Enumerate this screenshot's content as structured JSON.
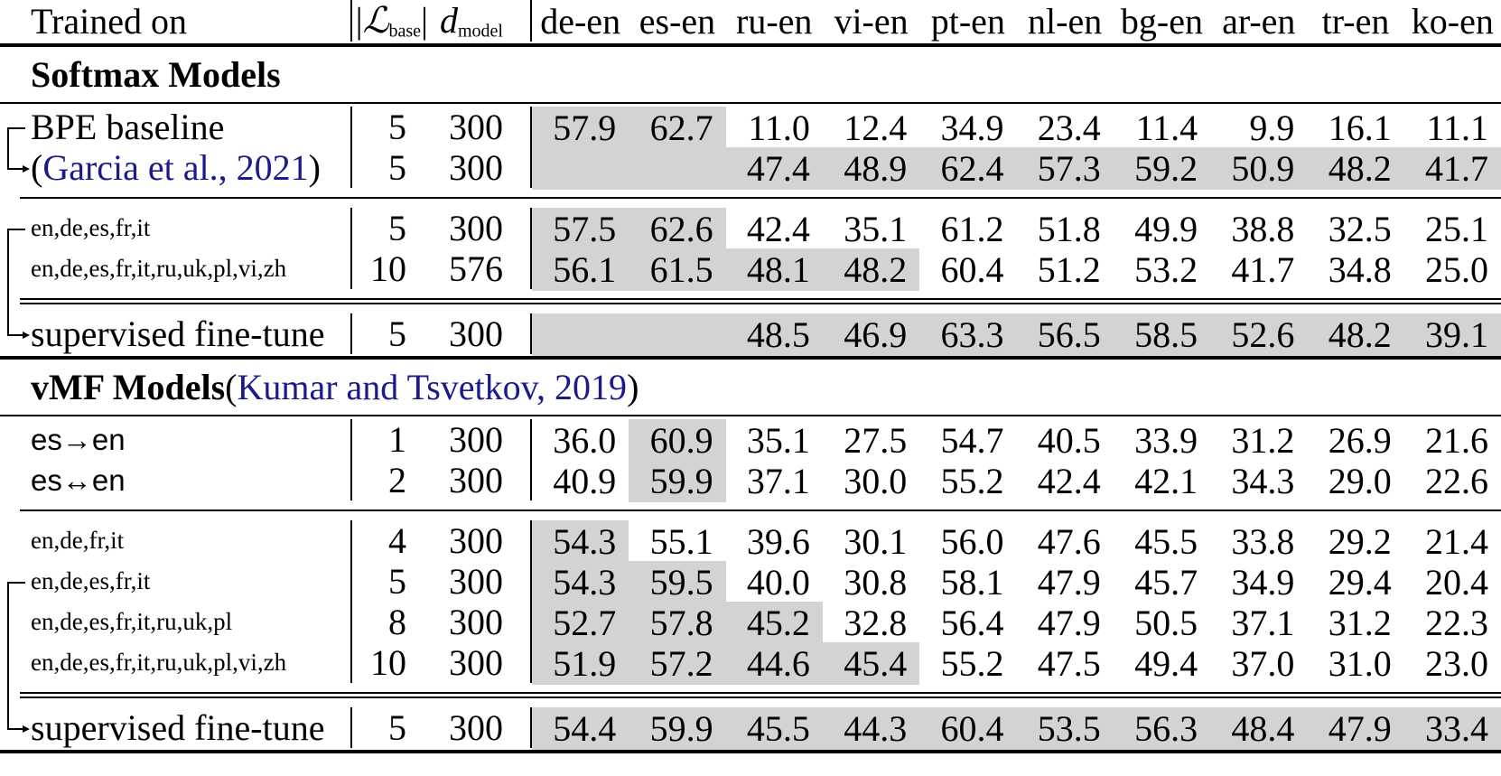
{
  "colors": {
    "shade": "#d3d3d3",
    "link": "#1a1a8c",
    "text": "#000000"
  },
  "header": {
    "trained_on": "Trained on",
    "l_base": {
      "pre": "|",
      "letter": "ℒ",
      "sub": "base",
      "post": "|"
    },
    "d_model": {
      "letter": "d",
      "sub": "model"
    },
    "languages": [
      "de-en",
      "es-en",
      "ru-en",
      "vi-en",
      "pt-en",
      "nl-en",
      "bg-en",
      "ar-en",
      "tr-en",
      "ko-en"
    ]
  },
  "rows": [
    {
      "type": "header"
    },
    {
      "type": "rule",
      "style": "thick"
    },
    {
      "type": "title",
      "parts": [
        {
          "text": "Softmax Models",
          "bold": true,
          "link": false
        }
      ]
    },
    {
      "type": "rule",
      "style": "title"
    },
    {
      "type": "data",
      "id": "softmax-bpe-baseline",
      "size": "normal",
      "label": [
        {
          "text": "BPE baseline",
          "link": false
        }
      ],
      "l_base": "5",
      "d_model": "300",
      "values": [
        "57.9",
        "62.7",
        "11.0",
        "12.4",
        "34.9",
        "23.4",
        "11.4",
        "9.9",
        "16.1",
        "11.1"
      ],
      "shaded": [
        true,
        true,
        false,
        false,
        false,
        false,
        false,
        false,
        false,
        false
      ]
    },
    {
      "type": "data",
      "id": "softmax-garcia",
      "size": "normal",
      "label": [
        {
          "text": "(",
          "link": false
        },
        {
          "text": "Garcia et al., 2021",
          "link": true
        },
        {
          "text": ")",
          "link": false
        }
      ],
      "l_base": "5",
      "d_model": "300",
      "values": [
        "",
        "",
        "47.4",
        "48.9",
        "62.4",
        "57.3",
        "59.2",
        "50.9",
        "48.2",
        "41.7"
      ],
      "shaded": [
        true,
        true,
        true,
        true,
        true,
        true,
        true,
        true,
        true,
        true
      ]
    },
    {
      "type": "rule",
      "style": "mid"
    },
    {
      "type": "data",
      "id": "softmax-5lang",
      "size": "small",
      "label": [
        {
          "text": "en,de,es,fr,it",
          "link": false
        }
      ],
      "l_base": "5",
      "d_model": "300",
      "values": [
        "57.5",
        "62.6",
        "42.4",
        "35.1",
        "61.2",
        "51.8",
        "49.9",
        "38.8",
        "32.5",
        "25.1"
      ],
      "shaded": [
        true,
        true,
        false,
        false,
        false,
        false,
        false,
        false,
        false,
        false
      ]
    },
    {
      "type": "data",
      "id": "softmax-10lang",
      "size": "small",
      "label": [
        {
          "text": "en,de,es,fr,it,ru,uk,pl,vi,zh",
          "link": false
        }
      ],
      "l_base": "10",
      "d_model": "576",
      "values": [
        "56.1",
        "61.5",
        "48.1",
        "48.2",
        "60.4",
        "51.2",
        "53.2",
        "41.7",
        "34.8",
        "25.0"
      ],
      "shaded": [
        true,
        true,
        true,
        true,
        false,
        false,
        false,
        false,
        false,
        false
      ]
    },
    {
      "type": "rule",
      "style": "double"
    },
    {
      "type": "data",
      "id": "softmax-sft",
      "size": "normal",
      "label": [
        {
          "text": "supervised fine-tune",
          "link": false
        }
      ],
      "l_base": "5",
      "d_model": "300",
      "values": [
        "",
        "",
        "48.5",
        "46.9",
        "63.3",
        "56.5",
        "58.5",
        "52.6",
        "48.2",
        "39.1"
      ],
      "shaded": [
        true,
        true,
        true,
        true,
        true,
        true,
        true,
        true,
        true,
        true
      ]
    },
    {
      "type": "rule",
      "style": "thick"
    },
    {
      "type": "title",
      "parts": [
        {
          "text": "vMF Models ",
          "bold": true,
          "link": false
        },
        {
          "text": "(",
          "bold": false,
          "link": false
        },
        {
          "text": "Kumar and Tsvetkov, 2019",
          "bold": false,
          "link": true
        },
        {
          "text": ")",
          "bold": false,
          "link": false
        }
      ]
    },
    {
      "type": "rule",
      "style": "title"
    },
    {
      "type": "data",
      "id": "vmf-es-to-en",
      "size": "sans",
      "label": [
        {
          "text": "es→en",
          "link": false
        }
      ],
      "l_base": "1",
      "d_model": "300",
      "values": [
        "36.0",
        "60.9",
        "35.1",
        "27.5",
        "54.7",
        "40.5",
        "33.9",
        "31.2",
        "26.9",
        "21.6"
      ],
      "shaded": [
        false,
        true,
        false,
        false,
        false,
        false,
        false,
        false,
        false,
        false
      ]
    },
    {
      "type": "data",
      "id": "vmf-es-bi-en",
      "size": "sans",
      "label": [
        {
          "text": "es↔en",
          "link": false
        }
      ],
      "l_base": "2",
      "d_model": "300",
      "values": [
        "40.9",
        "59.9",
        "37.1",
        "30.0",
        "55.2",
        "42.4",
        "42.1",
        "34.3",
        "29.0",
        "22.6"
      ],
      "shaded": [
        false,
        true,
        false,
        false,
        false,
        false,
        false,
        false,
        false,
        false
      ]
    },
    {
      "type": "rule",
      "style": "mid"
    },
    {
      "type": "data",
      "id": "vmf-4lang",
      "size": "small",
      "label": [
        {
          "text": "en,de,fr,it",
          "link": false
        }
      ],
      "l_base": "4",
      "d_model": "300",
      "values": [
        "54.3",
        "55.1",
        "39.6",
        "30.1",
        "56.0",
        "47.6",
        "45.5",
        "33.8",
        "29.2",
        "21.4"
      ],
      "shaded": [
        true,
        false,
        false,
        false,
        false,
        false,
        false,
        false,
        false,
        false
      ]
    },
    {
      "type": "data",
      "id": "vmf-5lang",
      "size": "small",
      "label": [
        {
          "text": "en,de,es,fr,it",
          "link": false
        }
      ],
      "l_base": "5",
      "d_model": "300",
      "values": [
        "54.3",
        "59.5",
        "40.0",
        "30.8",
        "58.1",
        "47.9",
        "45.7",
        "34.9",
        "29.4",
        "20.4"
      ],
      "shaded": [
        true,
        true,
        false,
        false,
        false,
        false,
        false,
        false,
        false,
        false
      ]
    },
    {
      "type": "data",
      "id": "vmf-8lang",
      "size": "small",
      "label": [
        {
          "text": "en,de,es,fr,it,ru,uk,pl",
          "link": false
        }
      ],
      "l_base": "8",
      "d_model": "300",
      "values": [
        "52.7",
        "57.8",
        "45.2",
        "32.8",
        "56.4",
        "47.9",
        "50.5",
        "37.1",
        "31.2",
        "22.3"
      ],
      "shaded": [
        true,
        true,
        true,
        false,
        false,
        false,
        false,
        false,
        false,
        false
      ]
    },
    {
      "type": "data",
      "id": "vmf-10lang",
      "size": "small",
      "label": [
        {
          "text": "en,de,es,fr,it,ru,uk,pl,vi,zh",
          "link": false
        }
      ],
      "l_base": "10",
      "d_model": "300",
      "values": [
        "51.9",
        "57.2",
        "44.6",
        "45.4",
        "55.2",
        "47.5",
        "49.4",
        "37.0",
        "31.0",
        "23.0"
      ],
      "shaded": [
        true,
        true,
        true,
        true,
        false,
        false,
        false,
        false,
        false,
        false
      ]
    },
    {
      "type": "rule",
      "style": "double"
    },
    {
      "type": "data",
      "id": "vmf-sft",
      "size": "normal",
      "label": [
        {
          "text": "supervised fine-tune",
          "link": false
        }
      ],
      "l_base": "5",
      "d_model": "300",
      "values": [
        "54.4",
        "59.9",
        "45.5",
        "44.3",
        "60.4",
        "53.5",
        "56.3",
        "48.4",
        "47.9",
        "33.4"
      ],
      "shaded": [
        true,
        true,
        true,
        true,
        true,
        true,
        true,
        true,
        true,
        true
      ]
    },
    {
      "type": "rule",
      "style": "thick"
    }
  ],
  "brackets": [
    {
      "from": "softmax-bpe-baseline",
      "to": "softmax-garcia"
    },
    {
      "from": "softmax-5lang",
      "to": "softmax-sft"
    },
    {
      "from": "vmf-5lang",
      "to": "vmf-sft"
    }
  ]
}
